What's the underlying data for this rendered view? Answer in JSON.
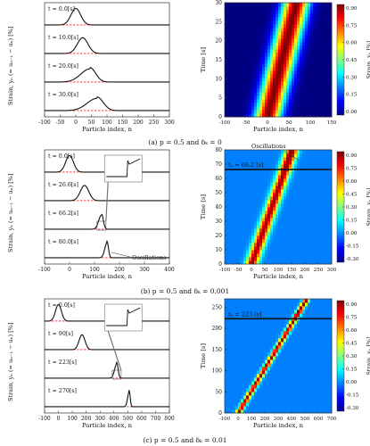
{
  "chart_data": [
    {
      "id": "a-left",
      "type": "line",
      "xlabel": "Particle index, n",
      "ylabel": "Strain, yₙ (= uₙ₋₁ − uₙ) [%]",
      "xlim": [
        -100,
        300
      ],
      "xticks": [
        -100,
        -50,
        0,
        50,
        100,
        150,
        200,
        250,
        300
      ],
      "series": [
        {
          "time_label": "t = 0.0[s]",
          "center": 0,
          "amplitude": 1.0,
          "width": 22
        },
        {
          "time_label": "t = 10.0[s]",
          "center": 22,
          "amplitude": 0.95,
          "width": 24
        },
        {
          "time_label": "t = 20.0[s]",
          "center": 45,
          "amplitude": 0.88,
          "width": 26
        },
        {
          "time_label": "t = 30.0[s]",
          "center": 68,
          "amplitude": 0.82,
          "width": 28
        }
      ]
    },
    {
      "id": "a-right",
      "type": "heatmap",
      "xlabel": "Particle index, n",
      "ylabel": "Time [s]",
      "xlim": [
        -100,
        150
      ],
      "ylim": [
        0,
        30
      ],
      "xticks": [
        -100,
        -50,
        0,
        50,
        100,
        150
      ],
      "yticks": [
        0,
        5,
        10,
        15,
        20,
        25,
        30
      ],
      "speed": 2.25,
      "colorbar": {
        "label": "Strain, yₙ [%]",
        "ticks": [
          "0.90",
          "0.75",
          "0.60",
          "0.45",
          "0.30",
          "0.15",
          "0.00"
        ]
      }
    },
    {
      "id": "b-left",
      "type": "line",
      "xlabel": "Particle index, n",
      "xlim": [
        -100,
        400
      ],
      "xticks": [
        -100,
        0,
        100,
        200,
        300,
        400
      ],
      "series": [
        {
          "time_label": "t = 0.0[s]",
          "center": 0,
          "amplitude": 1.0,
          "width": 22
        },
        {
          "time_label": "t = 26.6[s]",
          "center": 60,
          "amplitude": 0.92,
          "width": 24
        },
        {
          "time_label": "t = 66.2[s]",
          "center": 128,
          "amplitude": 0.95,
          "width": 10
        },
        {
          "time_label": "t = 80.0[s]",
          "center": 150,
          "amplitude": 1.0,
          "width": 8
        }
      ],
      "annotation": "Oscillations"
    },
    {
      "id": "b-right",
      "type": "heatmap",
      "xlabel": "Particle index, n",
      "ylabel": "Time [s]",
      "xlim": [
        -100,
        300
      ],
      "ylim": [
        0,
        80
      ],
      "xticks": [
        -100,
        -50,
        0,
        50,
        100,
        150,
        200,
        250,
        300
      ],
      "yticks": [
        0,
        10,
        20,
        30,
        40,
        50,
        60,
        70,
        80
      ],
      "speed": 1.9,
      "marker": {
        "label": "tₑ = 66.2 [s]",
        "time": 66.2
      },
      "annotation": "Oscillations",
      "colorbar": {
        "label": "Strain, yₙ [%]",
        "ticks": [
          "0.90",
          "0.75",
          "0.60",
          "0.45",
          "0.30",
          "0.15",
          "0.00",
          "-0.15",
          "-0.30"
        ]
      }
    },
    {
      "id": "c-left",
      "type": "line",
      "xlabel": "Particle index, n",
      "xlim": [
        -100,
        800
      ],
      "xticks": [
        -100,
        0,
        100,
        200,
        300,
        400,
        500,
        600,
        700,
        800
      ],
      "series": [
        {
          "time_label": "t = 0.0[s]",
          "center": 0,
          "amplitude": 1.0,
          "width": 30
        },
        {
          "time_label": "t = 90[s]",
          "center": 170,
          "amplitude": 0.9,
          "width": 30
        },
        {
          "time_label": "t = 223[s]",
          "center": 420,
          "amplitude": 0.95,
          "width": 14
        },
        {
          "time_label": "t = 270[s]",
          "center": 510,
          "amplitude": 1.0,
          "width": 10
        }
      ]
    },
    {
      "id": "c-right",
      "type": "heatmap",
      "xlabel": "Particle index, n",
      "ylabel": "Time [s]",
      "xlim": [
        -100,
        700
      ],
      "ylim": [
        0,
        270
      ],
      "xticks": [
        -100,
        0,
        100,
        200,
        300,
        400,
        500,
        600,
        700
      ],
      "yticks": [
        0,
        50,
        100,
        150,
        200,
        250
      ],
      "speed": 1.9,
      "marker": {
        "label": "tₑ = 223 [s]",
        "time": 223
      },
      "colorbar": {
        "label": "Strain, yₙ [%]",
        "ticks": [
          "0.90",
          "0.75",
          "0.60",
          "0.45",
          "0.30",
          "0.15",
          "0.00",
          "-0.15",
          "-0.30"
        ]
      }
    }
  ],
  "captions": {
    "a": "(a) p = 0.5 and δₖ = 0",
    "b": "(b) p = 0.5 and δₖ = 0.001",
    "c": "(c) p = 0.5 and δₖ = 0.01"
  }
}
